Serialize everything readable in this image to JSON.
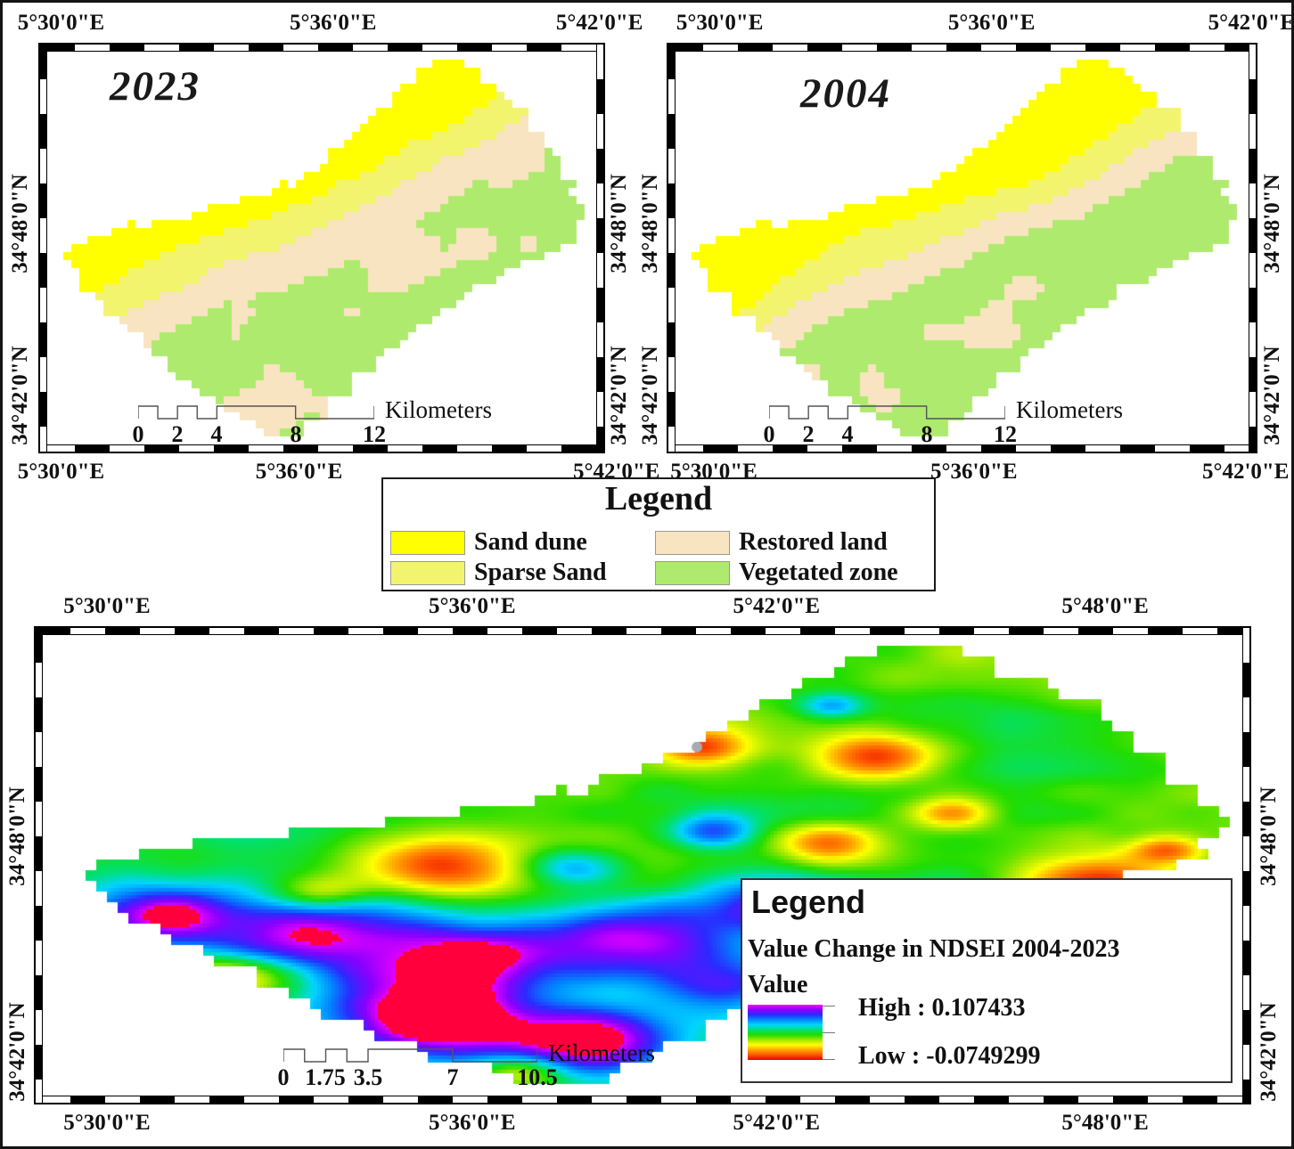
{
  "maps": {
    "m2023": {
      "title": "2023",
      "lon": [
        "5°30'0\"E",
        "5°36'0\"E",
        "5°42'0\"E"
      ],
      "lat": [
        "34°48'0\"N",
        "34°42'0\"N"
      ],
      "scale": {
        "ticks": [
          "0",
          "2",
          "4",
          "8",
          "12"
        ],
        "unit": "Kilometers"
      }
    },
    "m2004": {
      "title": "2004",
      "lon": [
        "5°30'0\"E",
        "5°36'0\"E",
        "5°42'0\"E"
      ],
      "lat": [
        "34°48'0\"N",
        "34°42'0\"N"
      ],
      "scale": {
        "ticks": [
          "0",
          "2",
          "4",
          "8",
          "12"
        ],
        "unit": "Kilometers"
      }
    },
    "mchange": {
      "lon": [
        "5°30'0\"E",
        "5°36'0\"E",
        "5°42'0\"E",
        "5°48'0\"E"
      ],
      "lat": [
        "34°48'0\"N",
        "34°42'0\"N"
      ],
      "scale": {
        "ticks": [
          "0",
          "1.75",
          "3.5",
          "7",
          "10.5"
        ],
        "unit": "Kilometers"
      }
    }
  },
  "legend_classes": {
    "title": "Legend",
    "items": [
      {
        "label": "Sand dune",
        "color": "#ffff00"
      },
      {
        "label": "Sparse Sand",
        "color": "#f2f46e"
      },
      {
        "label": "Restored land",
        "color": "#f9e4c1"
      },
      {
        "label": "Vegetated zone",
        "color": "#aeea6e"
      }
    ]
  },
  "legend_change": {
    "title": "Legend",
    "subtitle": "Value Change in NDSEI 2004-2023",
    "value_label": "Value",
    "high_label": "High : 0.107433",
    "low_label": "Low : -0.0749299",
    "ramp": [
      "#ff00ff",
      "#8800ff",
      "#2a2aff",
      "#0088ff",
      "#00d5ff",
      "#00e070",
      "#22dd00",
      "#9fe800",
      "#ffff00",
      "#ffa500",
      "#ff5500",
      "#e60000"
    ]
  }
}
